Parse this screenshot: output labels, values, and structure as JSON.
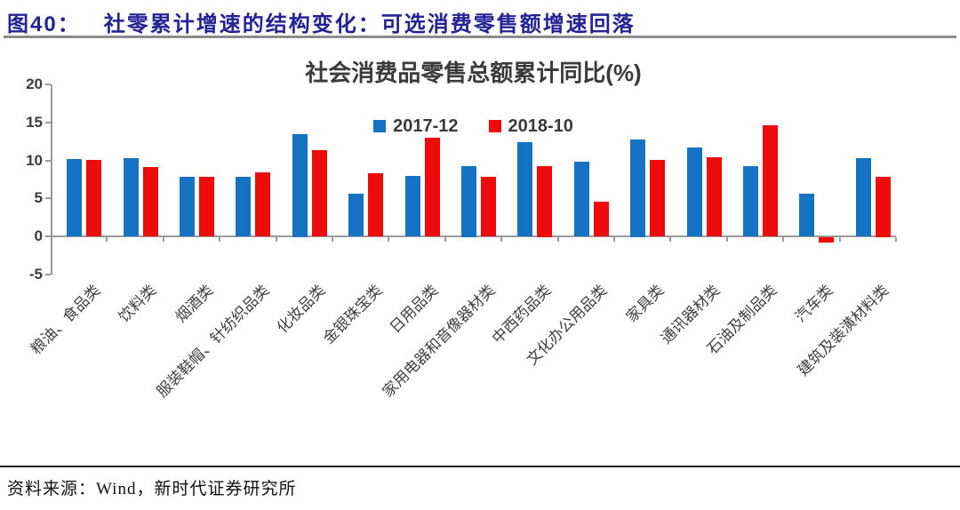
{
  "header": {
    "figure_label": "图40：",
    "title": "社零累计增速的结构变化：可选消费零售额增速回落"
  },
  "chart_data": {
    "type": "bar",
    "title": "社会消费品零售总额累计同比(%)",
    "categories": [
      "粮油、食品类",
      "饮料类",
      "烟酒类",
      "服装鞋帽、针纺织品类",
      "化妆品类",
      "金银珠宝类",
      "日用品类",
      "家用电器和音像器材类",
      "中西药品类",
      "文化办公用品类",
      "家具类",
      "通讯器材类",
      "石油及制品类",
      "汽车类",
      "建筑及装潢材料类"
    ],
    "series": [
      {
        "name": "2017-12",
        "color": "#1673C4",
        "values": [
          10.2,
          10.3,
          7.8,
          7.8,
          13.5,
          5.6,
          8.0,
          9.3,
          12.4,
          9.8,
          12.8,
          11.7,
          9.2,
          5.6,
          10.3
        ]
      },
      {
        "name": "2018-10",
        "color": "#EE0B0C",
        "values": [
          10.1,
          9.1,
          7.8,
          8.4,
          11.3,
          8.3,
          13.0,
          7.8,
          9.3,
          4.6,
          10.1,
          10.4,
          14.6,
          -0.7,
          7.9
        ]
      }
    ],
    "ylim": [
      -5,
      20
    ],
    "yticks": [
      20,
      15,
      10,
      5,
      0,
      -5
    ],
    "grid": false,
    "legend_position": "top-center"
  },
  "footer": {
    "source": "资料来源：Wind，新时代证券研究所"
  },
  "colors": {
    "header_text": "#232396",
    "header_rule": "#8C8C8C",
    "axis": "#9B9B9B",
    "tick_label": "#3B3B3B",
    "series_2017": "#1673C4",
    "series_2018": "#EE0B0C",
    "footer_rule": "#1A1A1A"
  }
}
